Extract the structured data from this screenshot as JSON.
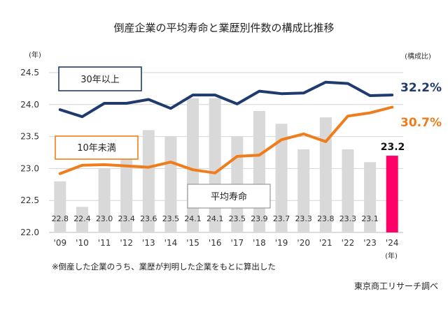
{
  "chart_data": {
    "type": "bar",
    "title": "倒産企業の平均寿命と業歴別件数の構成比推移",
    "y_unit": "(年)",
    "right_unit": "(構成比)",
    "x_unit": "(年)",
    "ylim": [
      22.0,
      24.5
    ],
    "yticks": [
      "22.0",
      "22.5",
      "23.0",
      "23.5",
      "24.0",
      "24.5"
    ],
    "categories": [
      "'09",
      "'10",
      "'11",
      "'12",
      "'13",
      "'14",
      "'15",
      "'16",
      "'17",
      "'18",
      "'19",
      "'20",
      "'21",
      "'22",
      "'23",
      "'24"
    ],
    "series": [
      {
        "name": "平均寿命",
        "kind": "bar",
        "color": "#d9d9d9",
        "highlight_color": "#ff0066",
        "values": [
          22.8,
          22.4,
          23.0,
          23.4,
          23.6,
          23.5,
          24.1,
          24.1,
          23.5,
          23.9,
          23.7,
          23.3,
          23.8,
          23.3,
          23.1,
          23.2
        ],
        "labels": [
          "22.8",
          "22.4",
          "23.0",
          "23.4",
          "23.6",
          "23.5",
          "24.1",
          "24.1",
          "23.5",
          "23.9",
          "23.7",
          "23.3",
          "23.8",
          "23.3",
          "23.1",
          "23.2"
        ]
      },
      {
        "name": "30年以上",
        "kind": "line",
        "color": "#1f3b6e",
        "values": [
          23.92,
          23.81,
          24.02,
          24.02,
          24.08,
          23.94,
          24.15,
          24.15,
          24.01,
          24.21,
          24.17,
          24.18,
          24.35,
          24.33,
          24.14,
          24.15
        ],
        "end_label": "32.2%"
      },
      {
        "name": "10年未満",
        "kind": "line",
        "color": "#f07d1b",
        "values": [
          22.92,
          23.05,
          23.06,
          23.04,
          23.02,
          23.1,
          22.98,
          22.93,
          23.19,
          23.21,
          23.45,
          23.54,
          23.42,
          23.82,
          23.87,
          23.96
        ],
        "end_label": "30.7%"
      }
    ],
    "annotations": {
      "last_bar_label": "23.2",
      "footnote": "※倒産した企業のうち、業歴が判明した企業をもとに算出した",
      "source": "東京商工リサーチ調べ"
    }
  }
}
